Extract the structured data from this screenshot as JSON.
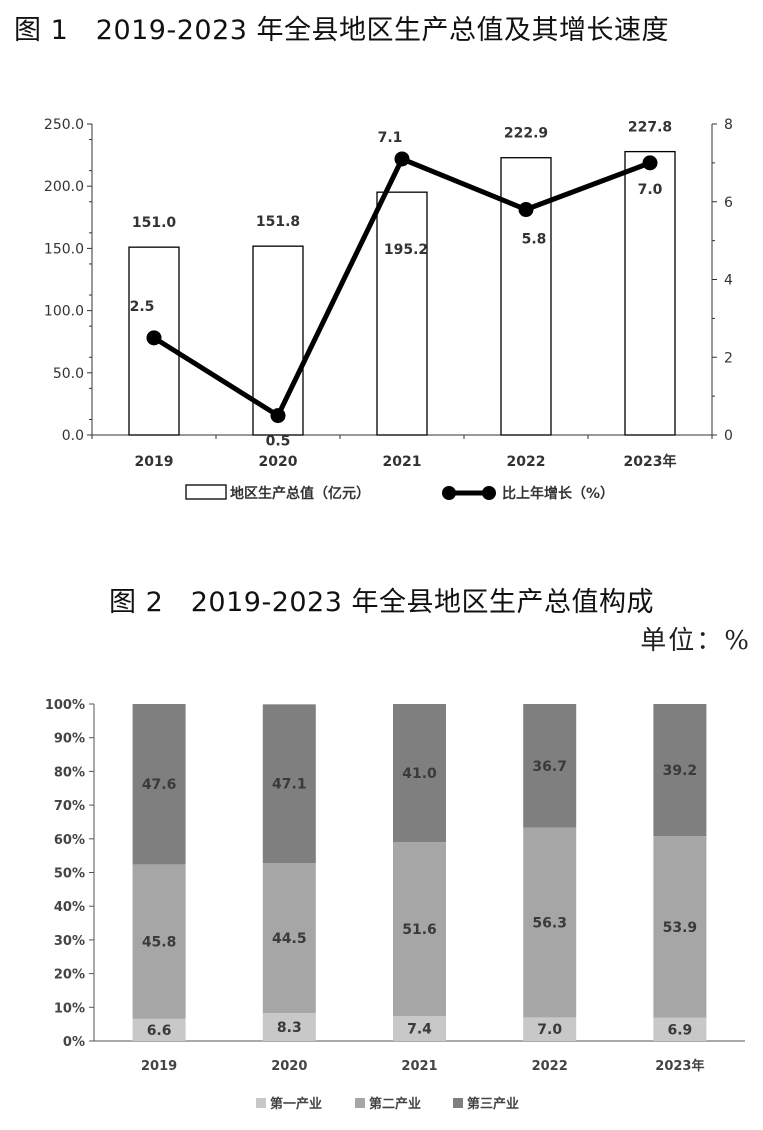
{
  "figure1": {
    "title": "图 1　2019-2023 年全县地区生产总值及其增长速度",
    "chart_data": {
      "type": "bar+line",
      "categories": [
        "2019",
        "2020",
        "2021",
        "2022",
        "2023年"
      ],
      "series": [
        {
          "name": "地区生产总值（亿元）",
          "type": "bar",
          "axis": "left",
          "values": [
            151.0,
            151.8,
            195.2,
            222.9,
            227.8
          ],
          "labels": [
            "151.0",
            "151.8",
            "195.2",
            "222.9",
            "227.8"
          ]
        },
        {
          "name": "比上年增长（%）",
          "type": "line",
          "axis": "right",
          "values": [
            2.5,
            0.5,
            7.1,
            5.8,
            7.0
          ],
          "labels": [
            "2.5",
            "0.5",
            "7.1",
            "5.8",
            "7.0"
          ]
        }
      ],
      "y_left": {
        "lim": [
          0,
          250
        ],
        "ticks": [
          "0.0",
          "50.0",
          "100.0",
          "150.0",
          "200.0",
          "250.0"
        ]
      },
      "y_right": {
        "lim": [
          0,
          8
        ],
        "ticks": [
          "0",
          "2",
          "4",
          "6",
          "8"
        ]
      },
      "legend": {
        "position": "bottom",
        "bar_label": "地区生产总值（亿元）",
        "line_label": "比上年增长（%）"
      },
      "colors": {
        "bar_fill": "#ffffff",
        "bar_stroke": "#000000",
        "line": "#000000"
      }
    }
  },
  "figure2": {
    "title": "图 2　2019-2023 年全县地区生产总值构成",
    "unit": "单位：%",
    "chart_data": {
      "type": "stacked_bar",
      "categories": [
        "2019",
        "2020",
        "2021",
        "2022",
        "2023年"
      ],
      "series": [
        {
          "name": "第一产业",
          "values": [
            6.6,
            8.3,
            7.4,
            7.0,
            6.9
          ],
          "color": "#c8c8c8"
        },
        {
          "name": "第二产业",
          "values": [
            45.8,
            44.5,
            51.6,
            56.3,
            53.9
          ],
          "color": "#a6a6a6"
        },
        {
          "name": "第三产业",
          "values": [
            47.6,
            47.1,
            41.0,
            36.7,
            39.2
          ],
          "color": "#7f7f7f"
        }
      ],
      "y": {
        "lim": [
          0,
          100
        ],
        "ticks": [
          "0%",
          "10%",
          "20%",
          "30%",
          "40%",
          "50%",
          "60%",
          "70%",
          "80%",
          "90%",
          "100%"
        ]
      },
      "legend": {
        "position": "bottom"
      }
    }
  }
}
